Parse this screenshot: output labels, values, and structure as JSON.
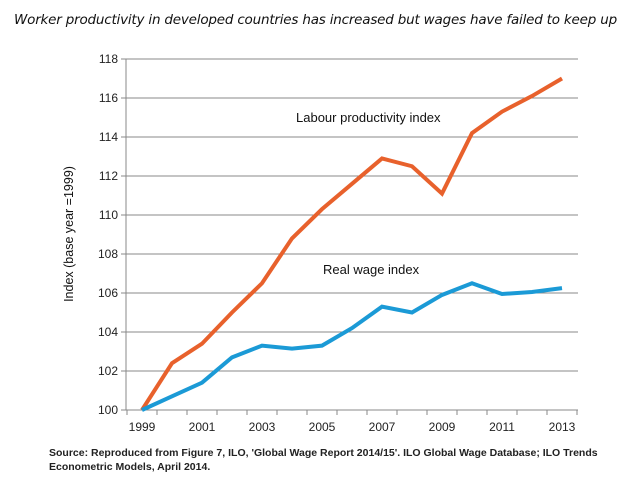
{
  "headline": "Worker productivity in developed countries has increased but wages have failed to keep up",
  "source": "Source: Reproduced from Figure 7, ILO, 'Global Wage Report 2014/15'. ILO Global Wage Database; ILO Trends Econometric Models, April 2014.",
  "chart_data": {
    "type": "line",
    "title": "Worker productivity in developed countries has increased but wages have failed to keep up",
    "xlabel": "",
    "ylabel": "Index (base year =1999)",
    "x": [
      1999,
      2000,
      2001,
      2002,
      2003,
      2004,
      2005,
      2006,
      2007,
      2008,
      2009,
      2010,
      2011,
      2012,
      2013
    ],
    "xticks": [
      "1999",
      "2001",
      "2003",
      "2005",
      "2007",
      "2009",
      "2011",
      "2013"
    ],
    "yticks": [
      "100",
      "102",
      "104",
      "106",
      "108",
      "110",
      "112",
      "114",
      "116",
      "118"
    ],
    "ylim": [
      100,
      118
    ],
    "grid": true,
    "legend": "inline-labels",
    "series": [
      {
        "name": "Labour productivity index",
        "color": "#E8612C",
        "values": [
          100,
          102.4,
          103.4,
          105.0,
          106.5,
          108.8,
          110.3,
          111.6,
          112.9,
          112.5,
          111.1,
          114.2,
          115.3,
          116.1,
          117.0
        ]
      },
      {
        "name": "Real wage index",
        "color": "#1B9AD6",
        "values": [
          100,
          100.7,
          101.4,
          102.7,
          103.3,
          103.15,
          103.3,
          104.2,
          105.3,
          105.0,
          105.9,
          106.5,
          105.95,
          106.05,
          106.25
        ]
      }
    ],
    "annotations": [
      {
        "text": "Labour productivity index",
        "series": 0
      },
      {
        "text": "Real wage index",
        "series": 1
      }
    ]
  }
}
